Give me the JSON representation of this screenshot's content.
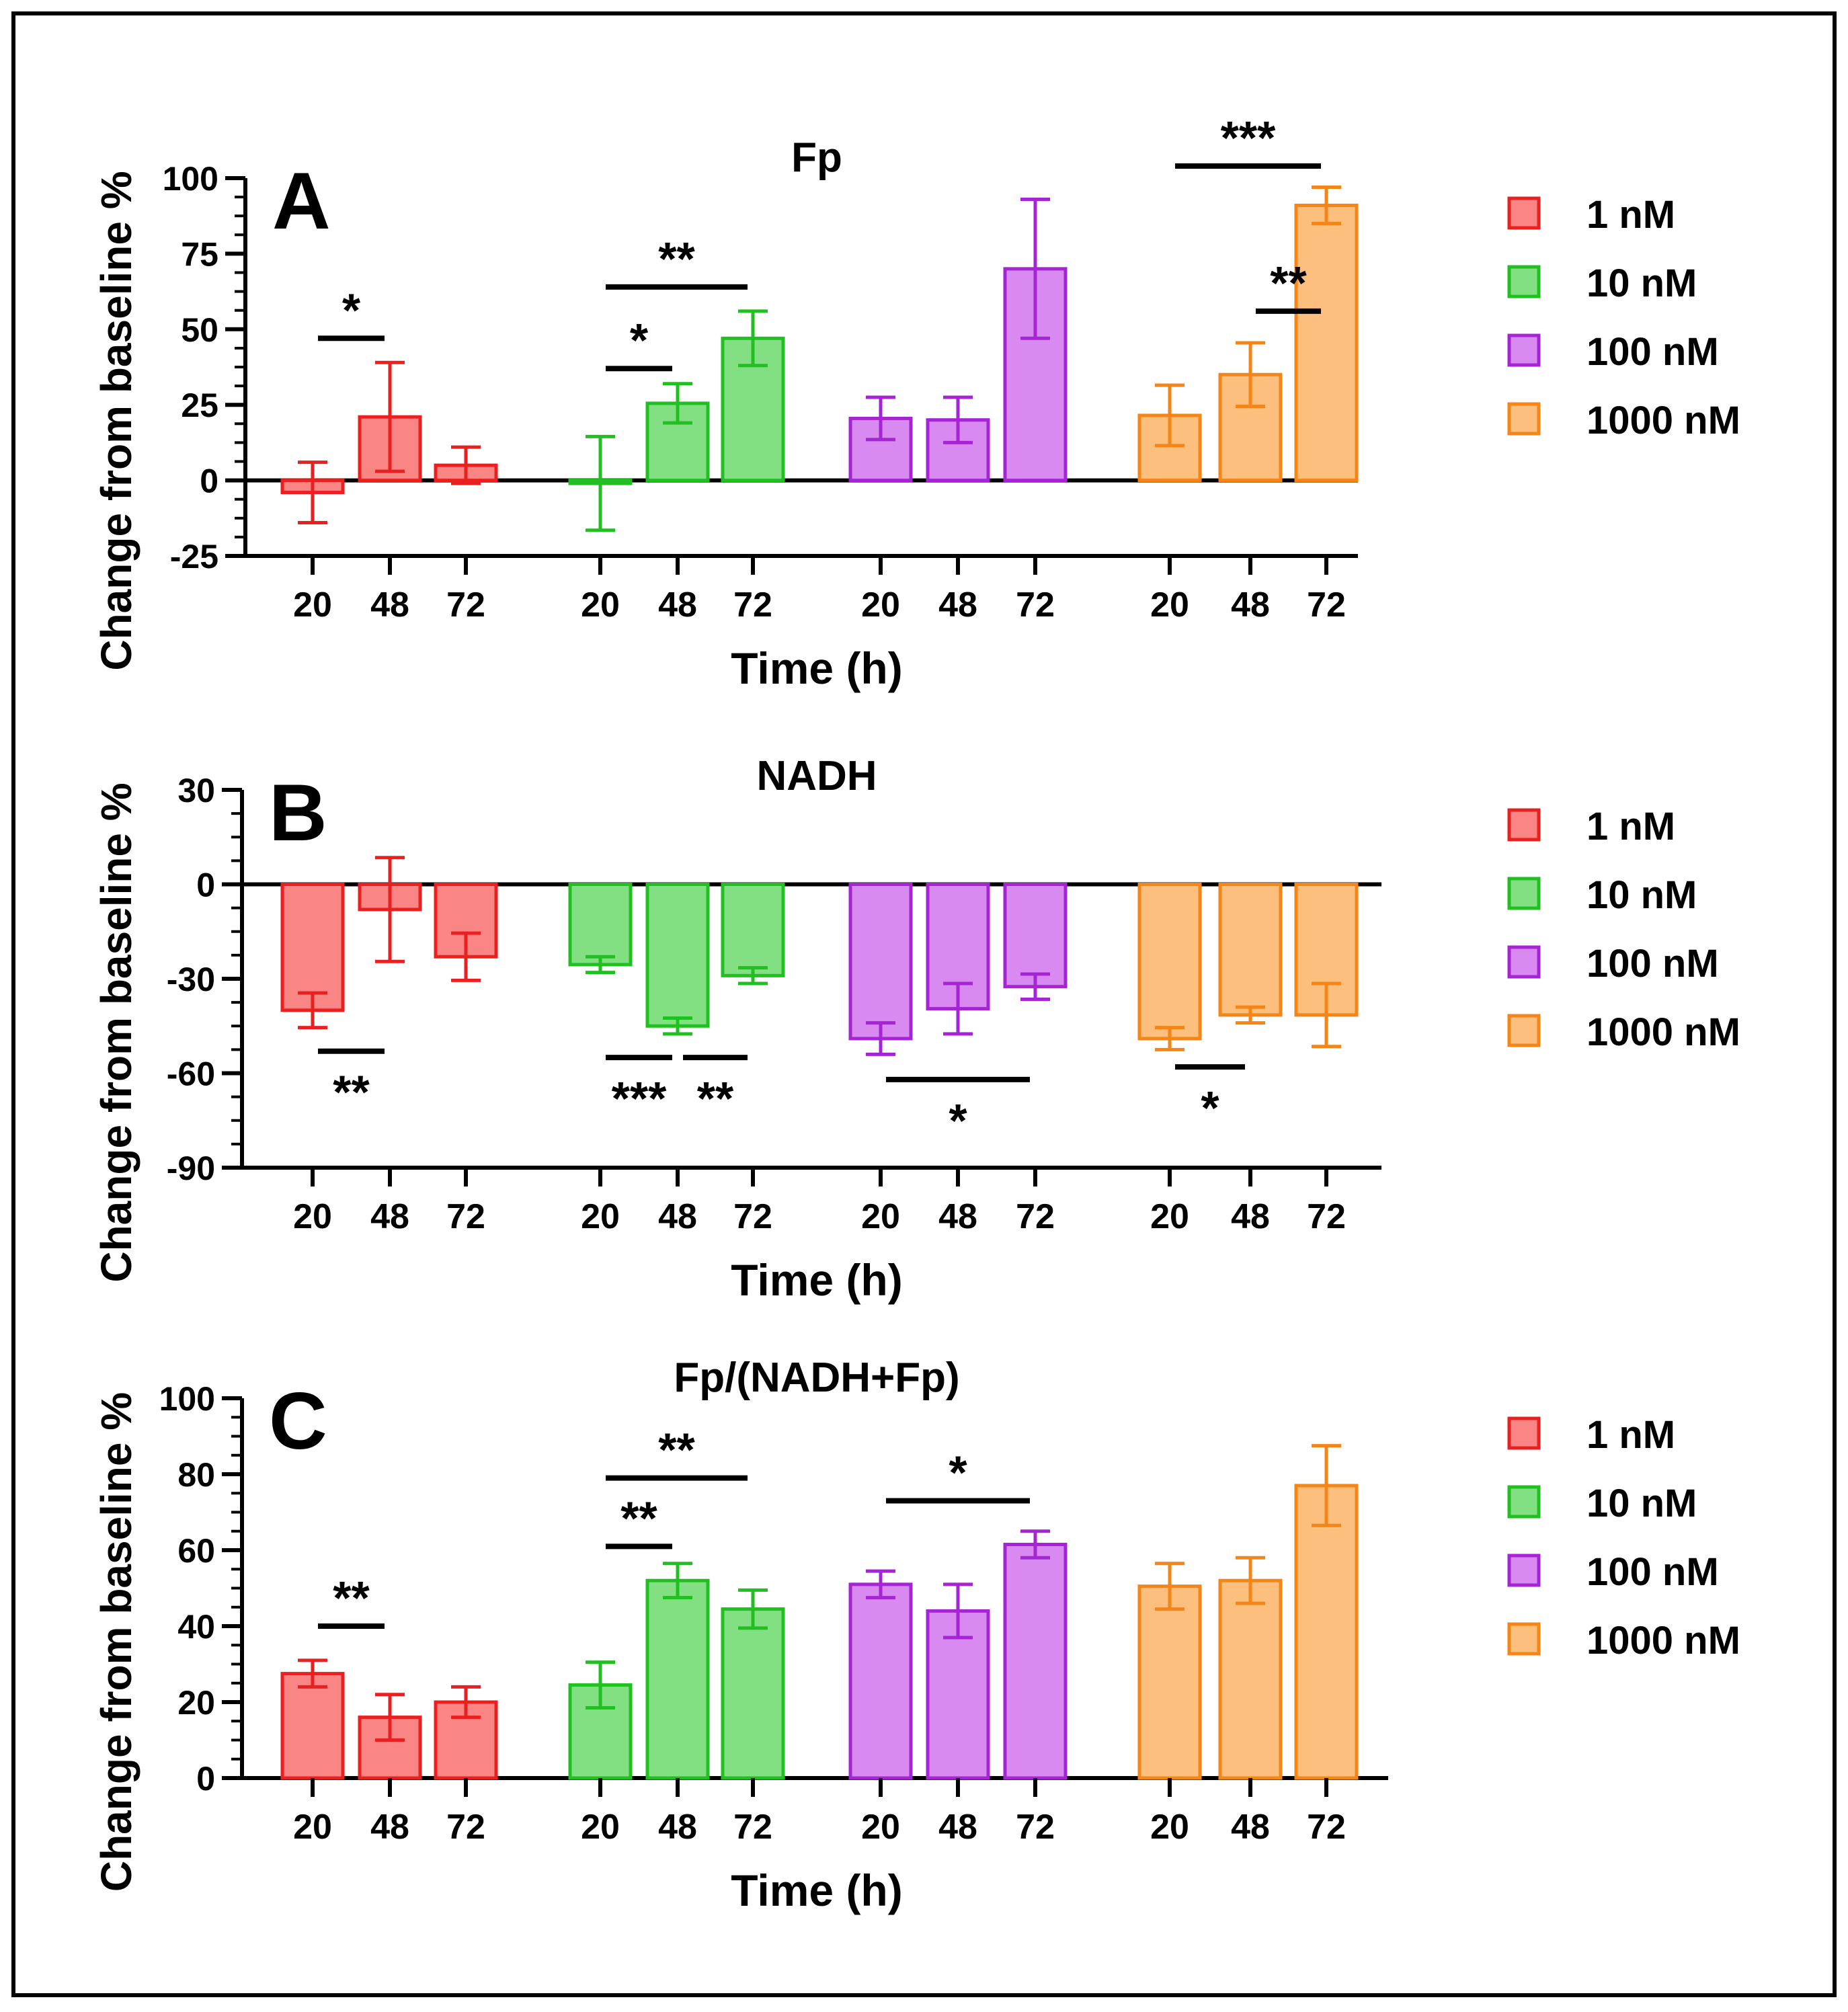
{
  "colors": {
    "1 nM": {
      "fill": "#f98585",
      "stroke": "#ea2020"
    },
    "10 nM": {
      "fill": "#82e082",
      "stroke": "#22bf22"
    },
    "100 nM": {
      "fill": "#d98af0",
      "stroke": "#a524d4"
    },
    "1000 nM": {
      "fill": "#fcbf7e",
      "stroke": "#f48516"
    }
  },
  "chart_data": [
    {
      "type": "bar",
      "panel_label": "A",
      "title": "Fp",
      "ylabel": "Change from baseline %",
      "xlabel": "Time (h)",
      "ylim": [
        -25,
        100
      ],
      "yticks": [
        -25,
        0,
        25,
        50,
        75,
        100
      ],
      "categories": [
        "20",
        "48",
        "72"
      ],
      "legend": [
        "1 nM",
        "10 nM",
        "100 nM",
        "1000 nM"
      ],
      "series": [
        {
          "name": "1 nM",
          "values": [
            -4,
            21,
            5
          ],
          "errors": [
            10,
            18,
            6
          ]
        },
        {
          "name": "10 nM",
          "values": [
            -1,
            25.5,
            47
          ],
          "errors": [
            15.5,
            6.5,
            9
          ]
        },
        {
          "name": "100 nM",
          "values": [
            20.5,
            20,
            70
          ],
          "errors": [
            7,
            7.5,
            23
          ]
        },
        {
          "name": "1000 nM",
          "values": [
            21.5,
            35,
            91
          ],
          "errors": [
            10,
            10.5,
            6
          ]
        }
      ],
      "significance": [
        {
          "series": 0,
          "from": 0,
          "to": 1,
          "y": 47,
          "label": "*"
        },
        {
          "series": 1,
          "from": 0,
          "to": 1,
          "y": 37,
          "label": "*"
        },
        {
          "series": 1,
          "from": 0,
          "to": 2,
          "y": 64,
          "label": "**"
        },
        {
          "series": 3,
          "from": 1,
          "to": 2,
          "y": 56,
          "label": "**"
        },
        {
          "series": 3,
          "from": 0,
          "to": 2,
          "y": 104,
          "label": "***"
        }
      ]
    },
    {
      "type": "bar",
      "panel_label": "B",
      "title": "NADH",
      "ylabel": "Change from baseline %",
      "xlabel": "Time (h)",
      "ylim": [
        -90,
        30
      ],
      "yticks": [
        -90,
        -60,
        -30,
        0,
        30
      ],
      "categories": [
        "20",
        "48",
        "72"
      ],
      "legend": [
        "1 nM",
        "10 nM",
        "100 nM",
        "1000 nM"
      ],
      "series": [
        {
          "name": "1 nM",
          "values": [
            -40,
            -8,
            -23
          ],
          "errors": [
            5.5,
            16.5,
            7.5
          ]
        },
        {
          "name": "10 nM",
          "values": [
            -25.5,
            -45,
            -29
          ],
          "errors": [
            2.5,
            2.5,
            2.5
          ]
        },
        {
          "name": "100 nM",
          "values": [
            -49,
            -39.5,
            -32.5
          ],
          "errors": [
            5,
            8,
            4
          ]
        },
        {
          "name": "1000 nM",
          "values": [
            -49,
            -41.5,
            -41.5
          ],
          "errors": [
            3.5,
            2.5,
            10
          ]
        }
      ],
      "significance": [
        {
          "series": 0,
          "from": 0,
          "to": 1,
          "y": -53,
          "label": "**",
          "below": true
        },
        {
          "series": 1,
          "from": 0,
          "to": 1,
          "y": -55,
          "label": "***",
          "below": true
        },
        {
          "series": 1,
          "from": 1,
          "to": 2,
          "y": -55,
          "label": "**",
          "below": true
        },
        {
          "series": 2,
          "from": 0,
          "to": 2,
          "y": -62,
          "label": "*",
          "below": true
        },
        {
          "series": 3,
          "from": 0,
          "to": 1,
          "y": -58,
          "label": "*",
          "below": true
        }
      ]
    },
    {
      "type": "bar",
      "panel_label": "C",
      "title": "Fp/(NADH+Fp)",
      "ylabel": "Change from baseline %",
      "xlabel": "Time (h)",
      "ylim": [
        0,
        100
      ],
      "yticks": [
        0,
        20,
        40,
        60,
        80,
        100
      ],
      "categories": [
        "20",
        "48",
        "72"
      ],
      "legend": [
        "1 nM",
        "10 nM",
        "100 nM",
        "1000 nM"
      ],
      "series": [
        {
          "name": "1 nM",
          "values": [
            27.5,
            16,
            20
          ],
          "errors": [
            3.5,
            6,
            4
          ]
        },
        {
          "name": "10 nM",
          "values": [
            24.5,
            52,
            44.5
          ],
          "errors": [
            6,
            4.5,
            5
          ]
        },
        {
          "name": "100 nM",
          "values": [
            51,
            44,
            61.5
          ],
          "errors": [
            3.5,
            7,
            3.5
          ]
        },
        {
          "name": "1000 nM",
          "values": [
            50.5,
            52,
            77
          ],
          "errors": [
            6,
            6,
            10.5
          ]
        }
      ],
      "significance": [
        {
          "series": 0,
          "from": 0,
          "to": 1,
          "y": 40,
          "label": "**"
        },
        {
          "series": 1,
          "from": 0,
          "to": 1,
          "y": 61,
          "label": "**"
        },
        {
          "series": 1,
          "from": 0,
          "to": 2,
          "y": 79,
          "label": "**"
        },
        {
          "series": 2,
          "from": 0,
          "to": 2,
          "y": 73,
          "label": "*"
        }
      ]
    }
  ]
}
